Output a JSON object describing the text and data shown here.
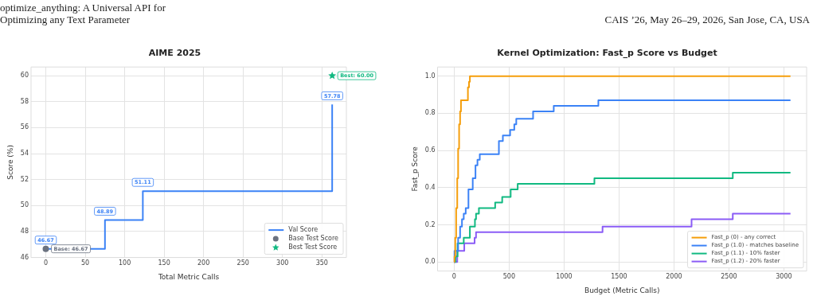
{
  "chart_data": [
    {
      "type": "step",
      "title": "AIME 2025",
      "xlabel": "Total Metric Calls",
      "ylabel": "Score (%)",
      "xlim": [
        -18.7,
        381
      ],
      "ylim": [
        46,
        60.67
      ],
      "xticks": [
        0,
        50,
        100,
        150,
        200,
        250,
        300,
        350
      ],
      "yticks": [
        46,
        48,
        50,
        52,
        54,
        56,
        58,
        60
      ],
      "grid": true,
      "legend": "bottom right",
      "annotations": [
        "optimize_anything: A Universal API for Optimizing any Text Parameter",
        "CAIS ’26, May 26–29, 2026, San Jose, CA, USA"
      ],
      "series": [
        {
          "name": "Val Score",
          "color": "#3b82f6",
          "marker": "none",
          "x": [
            0,
            75,
            123,
            363
          ],
          "values": [
            46.67,
            48.89,
            51.11,
            57.78
          ],
          "value_labels": [
            "46.67",
            "48.89",
            "51.11",
            "57.78"
          ]
        },
        {
          "name": "Base Test Score",
          "type": "scatter",
          "color": "#6b7280",
          "marker": "circle",
          "x": [
            0
          ],
          "values": [
            46.67
          ],
          "value_labels": [
            "Base: 46.67"
          ]
        },
        {
          "name": "Best Test Score",
          "type": "scatter",
          "color": "#10b981",
          "marker": "star",
          "x": [
            363
          ],
          "values": [
            60.0
          ],
          "value_labels": [
            "Best: 60.00"
          ]
        }
      ]
    },
    {
      "type": "step",
      "title": "Kernel Optimization: Fast_p Score vs Budget",
      "xlabel": "Budget (Metric Calls)",
      "ylabel": "Fast_p Score",
      "xlim": [
        -151,
        3207
      ],
      "ylim": [
        -0.049,
        1.049
      ],
      "xticks": [
        0,
        500,
        1000,
        1500,
        2000,
        2500,
        3000
      ],
      "yticks": [
        {
          "value": 0,
          "label": "0.0"
        },
        {
          "value": 0.2,
          "label": "0.2"
        },
        {
          "value": 0.4,
          "label": "0.4"
        },
        {
          "value": 0.6,
          "label": "0.6"
        },
        {
          "value": 0.8,
          "label": "0.8"
        },
        {
          "value": 1,
          "label": "1.0"
        }
      ],
      "grid": true,
      "legend": "bottom right",
      "series": [
        {
          "name": "Fast_p (0) - any correct",
          "color": "#f59e0b",
          "x": [
            0,
            3,
            10,
            18,
            28,
            36,
            45,
            54,
            62,
            125,
            135,
            143,
            3060
          ],
          "values": [
            0,
            0.03,
            0.13,
            0.29,
            0.45,
            0.61,
            0.74,
            0.81,
            0.87,
            0.94,
            0.97,
            1.0,
            1.0
          ]
        },
        {
          "name": "Fast_p (1.0) - matches baseline",
          "color": "#3b82f6",
          "x": [
            0,
            3,
            36,
            54,
            71,
            87,
            105,
            130,
            169,
            194,
            212,
            233,
            407,
            443,
            509,
            547,
            565,
            718,
            906,
            1312,
            3060
          ],
          "values": [
            0,
            0.06,
            0.13,
            0.19,
            0.23,
            0.26,
            0.29,
            0.39,
            0.45,
            0.52,
            0.55,
            0.58,
            0.65,
            0.68,
            0.71,
            0.74,
            0.77,
            0.81,
            0.84,
            0.87,
            0.87
          ]
        },
        {
          "name": "Fast_p (1.1) - 10% faster",
          "color": "#10b981",
          "x": [
            0,
            13,
            31,
            87,
            143,
            189,
            199,
            225,
            373,
            437,
            514,
            578,
            1276,
            2535,
            3060
          ],
          "values": [
            0,
            0.03,
            0.1,
            0.13,
            0.19,
            0.23,
            0.26,
            0.29,
            0.32,
            0.35,
            0.39,
            0.42,
            0.45,
            0.48,
            0.48
          ]
        },
        {
          "name": "Fast_p (1.2) - 20% faster",
          "color": "#8b5cf6",
          "x": [
            0,
            28,
            92,
            186,
            199,
            1350,
            2160,
            2535,
            3060
          ],
          "values": [
            0,
            0.06,
            0.1,
            0.13,
            0.16,
            0.19,
            0.23,
            0.26,
            0.26
          ]
        }
      ]
    }
  ]
}
